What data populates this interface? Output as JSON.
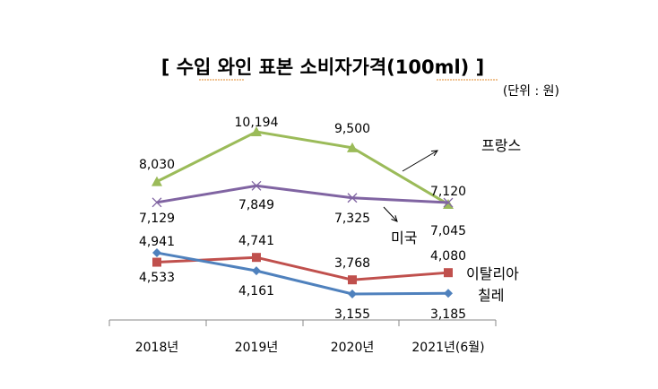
{
  "chart_data": {
    "type": "line",
    "title": "[ 수입 와인 표본 소비자가격(100ml) ]",
    "unit_note": "(단위 : 원)",
    "categories": [
      "2018년",
      "2019년",
      "2020년",
      "2021년(6월)"
    ],
    "series": [
      {
        "name": "프랑스",
        "color": "#9BBB59",
        "marker": "triangle",
        "values": [
          8030,
          10194,
          9500,
          7045
        ],
        "labels": [
          "8,030",
          "10,194",
          "9,500",
          "7,045"
        ]
      },
      {
        "name": "미국",
        "color": "#8064A2",
        "marker": "x",
        "values": [
          7129,
          7849,
          7325,
          7120
        ],
        "labels": [
          "7,129",
          "7,849",
          "7,325",
          "7,120"
        ]
      },
      {
        "name": "이탈리아",
        "color": "#C0504D",
        "marker": "square",
        "values": [
          4533,
          4741,
          3768,
          4080
        ],
        "labels": [
          "4,533",
          "4,741",
          "3,768",
          "4,080"
        ]
      },
      {
        "name": "칠레",
        "color": "#4F81BD",
        "marker": "diamond",
        "values": [
          4941,
          4161,
          3155,
          3185
        ],
        "labels": [
          "4,941",
          "4,161",
          "3,155",
          "3,185"
        ]
      }
    ],
    "grid": false,
    "legend": "none (series names as annotations)"
  }
}
